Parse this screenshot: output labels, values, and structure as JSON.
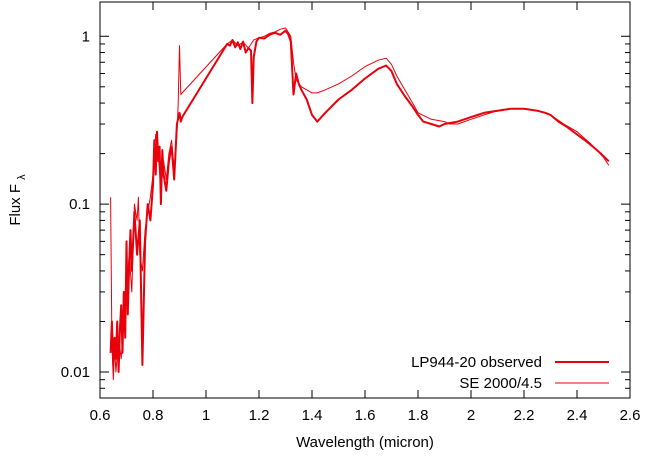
{
  "chart_data": {
    "type": "line",
    "xlabel": "Wavelength (micron)",
    "ylabel_main": "Flux F",
    "ylabel_sub": "λ",
    "xlim": [
      0.6,
      2.6
    ],
    "ylim": [
      0.007,
      1.6
    ],
    "yscale": "log",
    "x_ticks": [
      0.6,
      0.8,
      1.0,
      1.2,
      1.4,
      1.6,
      1.8,
      2.0,
      2.2,
      2.4,
      2.6
    ],
    "x_tick_labels": [
      "0.6",
      "0.8",
      "1",
      "1.2",
      "1.4",
      "1.6",
      "1.8",
      "2",
      "2.2",
      "2.4",
      "2.6"
    ],
    "y_ticks": [
      0.01,
      0.1,
      1
    ],
    "y_tick_labels": [
      "0.01",
      "0.1",
      "1"
    ],
    "legend_position": "bottom-right",
    "grid": false,
    "series": [
      {
        "name": "LP944-20 observed",
        "color": "#e8000b",
        "width": 2.0,
        "x": [
          0.64,
          0.645,
          0.65,
          0.655,
          0.66,
          0.665,
          0.67,
          0.675,
          0.68,
          0.685,
          0.69,
          0.695,
          0.7,
          0.705,
          0.71,
          0.715,
          0.72,
          0.73,
          0.74,
          0.75,
          0.76,
          0.77,
          0.78,
          0.79,
          0.8,
          0.805,
          0.81,
          0.815,
          0.82,
          0.825,
          0.83,
          0.835,
          0.84,
          0.85,
          0.86,
          0.87,
          0.88,
          0.89,
          0.9,
          0.905,
          0.91,
          1.08,
          1.09,
          1.1,
          1.11,
          1.12,
          1.13,
          1.14,
          1.15,
          1.16,
          1.17,
          1.175,
          1.18,
          1.19,
          1.2,
          1.22,
          1.24,
          1.26,
          1.28,
          1.3,
          1.31,
          1.32,
          1.33,
          1.34,
          1.35,
          1.36,
          1.38,
          1.4,
          1.42,
          1.45,
          1.5,
          1.55,
          1.6,
          1.65,
          1.68,
          1.7,
          1.72,
          1.75,
          1.78,
          1.8,
          1.82,
          1.85,
          1.88,
          1.9,
          1.95,
          2.0,
          2.05,
          2.1,
          2.15,
          2.2,
          2.25,
          2.28,
          2.3,
          2.33,
          2.36,
          2.4,
          2.43,
          2.46,
          2.49,
          2.52
        ],
        "y": [
          0.013,
          0.02,
          0.011,
          0.016,
          0.012,
          0.02,
          0.01,
          0.018,
          0.025,
          0.013,
          0.03,
          0.016,
          0.06,
          0.022,
          0.045,
          0.07,
          0.04,
          0.09,
          0.05,
          0.08,
          0.011,
          0.06,
          0.1,
          0.08,
          0.13,
          0.24,
          0.15,
          0.27,
          0.18,
          0.22,
          0.1,
          0.21,
          0.15,
          0.12,
          0.18,
          0.22,
          0.14,
          0.3,
          0.35,
          0.31,
          0.33,
          0.9,
          0.88,
          0.95,
          0.86,
          0.92,
          0.84,
          0.93,
          0.8,
          0.85,
          0.82,
          0.4,
          0.75,
          0.93,
          0.98,
          0.97,
          1.02,
          1.05,
          1.02,
          1.08,
          1.03,
          0.93,
          0.45,
          0.6,
          0.52,
          0.48,
          0.42,
          0.34,
          0.31,
          0.35,
          0.42,
          0.48,
          0.56,
          0.64,
          0.67,
          0.62,
          0.52,
          0.44,
          0.38,
          0.34,
          0.31,
          0.3,
          0.29,
          0.3,
          0.31,
          0.33,
          0.35,
          0.36,
          0.37,
          0.37,
          0.36,
          0.35,
          0.34,
          0.31,
          0.29,
          0.26,
          0.24,
          0.22,
          0.2,
          0.18
        ]
      },
      {
        "name": "SE 2000/4.5",
        "color": "#e8000b",
        "width": 1.0,
        "x": [
          0.64,
          0.645,
          0.65,
          0.655,
          0.66,
          0.67,
          0.68,
          0.69,
          0.7,
          0.71,
          0.72,
          0.73,
          0.74,
          0.745,
          0.75,
          0.76,
          0.77,
          0.78,
          0.79,
          0.8,
          0.81,
          0.82,
          0.83,
          0.84,
          0.85,
          0.86,
          0.87,
          0.88,
          0.89,
          0.895,
          0.9,
          0.905,
          0.91,
          1.08,
          1.1,
          1.12,
          1.14,
          1.16,
          1.18,
          1.2,
          1.22,
          1.24,
          1.26,
          1.28,
          1.3,
          1.32,
          1.33,
          1.34,
          1.36,
          1.38,
          1.4,
          1.42,
          1.45,
          1.5,
          1.55,
          1.6,
          1.65,
          1.68,
          1.7,
          1.72,
          1.75,
          1.78,
          1.8,
          1.85,
          1.9,
          1.92,
          1.95,
          2.0,
          2.05,
          2.1,
          2.15,
          2.2,
          2.25,
          2.3,
          2.35,
          2.4,
          2.45,
          2.5,
          2.52
        ],
        "y": [
          0.11,
          0.015,
          0.009,
          0.014,
          0.01,
          0.016,
          0.012,
          0.02,
          0.03,
          0.05,
          0.03,
          0.1,
          0.08,
          0.11,
          0.05,
          0.04,
          0.07,
          0.09,
          0.11,
          0.15,
          0.26,
          0.2,
          0.12,
          0.18,
          0.14,
          0.2,
          0.24,
          0.16,
          0.26,
          0.4,
          0.88,
          0.45,
          0.46,
          0.9,
          0.95,
          0.88,
          0.92,
          0.85,
          0.95,
          0.98,
          1.0,
          1.04,
          1.06,
          1.1,
          1.12,
          1.0,
          0.7,
          0.55,
          0.5,
          0.48,
          0.46,
          0.46,
          0.48,
          0.52,
          0.58,
          0.66,
          0.72,
          0.74,
          0.68,
          0.58,
          0.48,
          0.4,
          0.35,
          0.32,
          0.31,
          0.3,
          0.3,
          0.32,
          0.34,
          0.36,
          0.37,
          0.37,
          0.36,
          0.34,
          0.3,
          0.27,
          0.23,
          0.19,
          0.17
        ]
      }
    ]
  }
}
